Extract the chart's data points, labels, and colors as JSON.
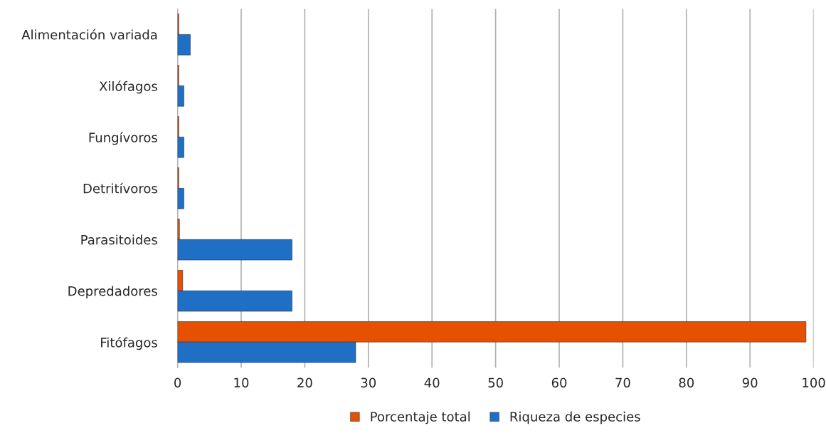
{
  "chart_data": {
    "type": "bar",
    "orientation": "horizontal",
    "categories": [
      "Alimentación variada",
      "Xilófagos",
      "Fungívoros",
      "Detritívoros",
      "Parasitoides",
      "Depredadores",
      "Fitófagos"
    ],
    "series": [
      {
        "name": "Porcentaje total",
        "color": "#e65100",
        "values": [
          0.2,
          0.2,
          0.2,
          0.2,
          0.3,
          0.8,
          98.8
        ]
      },
      {
        "name": "Riqueza de especies",
        "color": "#1f6fc5",
        "values": [
          2,
          1,
          1,
          1,
          18,
          18,
          28
        ]
      }
    ],
    "xlim": [
      0,
      100
    ],
    "xticks": [
      0,
      10,
      20,
      30,
      40,
      50,
      60,
      70,
      80,
      90,
      100
    ],
    "grid": "x",
    "legend": "bottom"
  }
}
